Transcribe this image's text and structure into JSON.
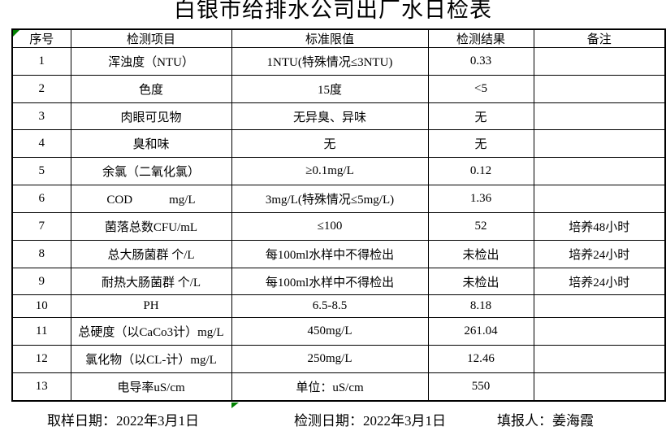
{
  "title": "白银市给排水公司出厂水日检表",
  "colors": {
    "background": "#ffffff",
    "border": "#000000",
    "error_marker_green": "#008000"
  },
  "table": {
    "headers": [
      "序号",
      "检测项目",
      "标准限值",
      "检测结果",
      "备注"
    ],
    "rows": [
      {
        "no": "1",
        "item": "浑浊度（NTU）",
        "limit": "1NTU(特殊情况≤3NTU)",
        "result": "0.33",
        "remark": ""
      },
      {
        "no": "2",
        "item": "色度",
        "limit": "15度",
        "result": "<5",
        "remark": ""
      },
      {
        "no": "3",
        "item": "肉眼可见物",
        "limit": "无异臭、异味",
        "result": "无",
        "remark": ""
      },
      {
        "no": "4",
        "item": "臭和味",
        "limit": "无",
        "result": "无",
        "remark": ""
      },
      {
        "no": "5",
        "item": "余氯（二氧化氯）",
        "limit": "≥0.1mg/L",
        "result": "0.12",
        "remark": ""
      },
      {
        "no": "6",
        "item": "COD　　　mg/L",
        "limit": "3mg/L(特殊情况≤5mg/L)",
        "result": "1.36",
        "remark": ""
      },
      {
        "no": "7",
        "item": "菌落总数CFU/mL",
        "limit": "≤100",
        "result": "52",
        "remark": "培养48小时"
      },
      {
        "no": "8",
        "item": "总大肠菌群 个/L",
        "limit": "每100ml水样中不得检出",
        "result": "未检出",
        "remark": "培养24小时"
      },
      {
        "no": "9",
        "item": "耐热大肠菌群 个/L",
        "limit": "每100ml水样中不得检出",
        "result": "未检出",
        "remark": "培养24小时"
      },
      {
        "no": "10",
        "item": "PH",
        "limit": "6.5-8.5",
        "result": "8.18",
        "remark": ""
      },
      {
        "no": "11",
        "item": "总硬度（以CaCo3计）mg/L",
        "limit": "450mg/L",
        "result": "261.04",
        "remark": ""
      },
      {
        "no": "12",
        "item": "氯化物（以CL-计）mg/L",
        "limit": "250mg/L",
        "result": "12.46",
        "remark": ""
      },
      {
        "no": "13",
        "item": "电导率uS/cm",
        "limit": "单位：uS/cm",
        "result": "550",
        "remark": ""
      }
    ]
  },
  "footer": {
    "items": [
      {
        "label": "取样日期：",
        "value": "2022年3月1日"
      },
      {
        "label": "检测日期：",
        "value": "2022年3月1日"
      },
      {
        "label": "填报人：",
        "value": "姜海霞"
      }
    ]
  }
}
